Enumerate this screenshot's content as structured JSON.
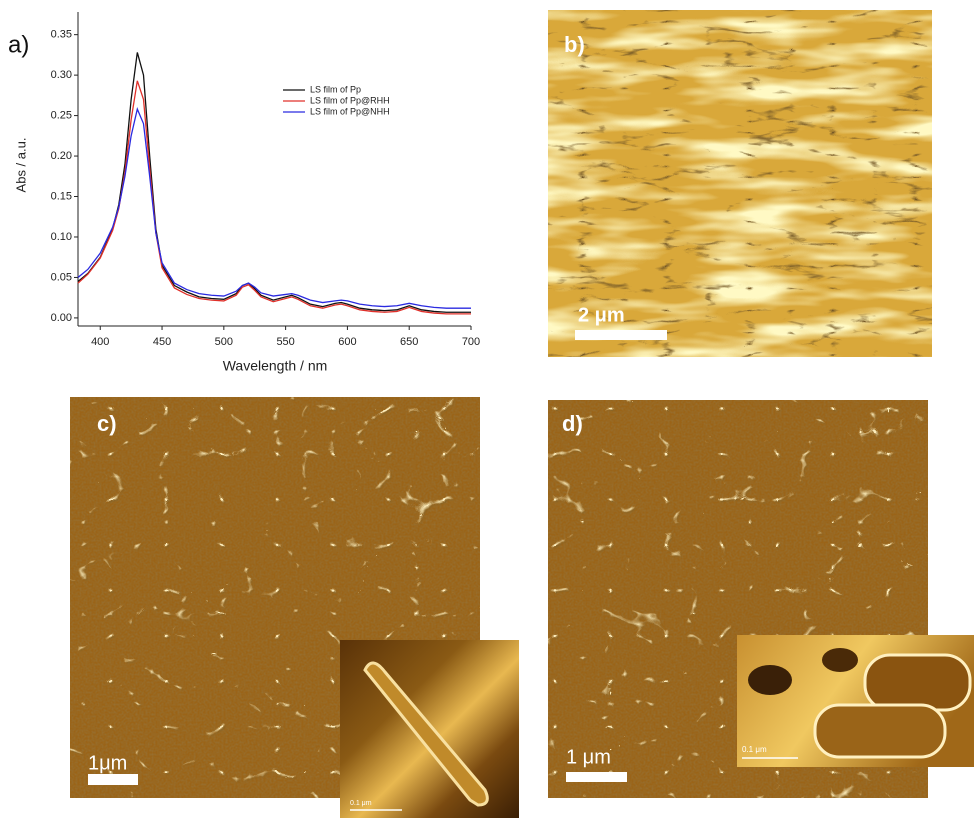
{
  "chart_data": {
    "type": "line",
    "panel_label": "a)",
    "x_label": "Wavelength / nm",
    "y_label": "Abs / a.u.",
    "xlim": [
      382,
      700
    ],
    "ylim": [
      -0.01,
      0.378
    ],
    "xticks": [
      400,
      450,
      500,
      550,
      600,
      650,
      700
    ],
    "yticks": [
      {
        "value": 0,
        "label": "0.00"
      },
      0.05,
      {
        "value": 0.1,
        "label": "0.10"
      },
      0.15,
      {
        "value": 0.2,
        "label": "0.20"
      },
      0.25,
      {
        "value": 0.3,
        "label": "0.30"
      },
      0.35
    ],
    "x": [
      382,
      390,
      400,
      410,
      415,
      420,
      425,
      430,
      435,
      440,
      445,
      450,
      460,
      470,
      480,
      490,
      500,
      510,
      515,
      520,
      525,
      530,
      540,
      550,
      555,
      560,
      570,
      580,
      590,
      595,
      600,
      610,
      620,
      630,
      640,
      650,
      660,
      670,
      680,
      690,
      700
    ],
    "series": [
      {
        "name": "LS film of Pp",
        "color": "#111111",
        "values": [
          0.045,
          0.055,
          0.075,
          0.11,
          0.14,
          0.19,
          0.27,
          0.328,
          0.3,
          0.2,
          0.11,
          0.065,
          0.04,
          0.032,
          0.026,
          0.024,
          0.023,
          0.03,
          0.04,
          0.043,
          0.036,
          0.028,
          0.022,
          0.026,
          0.028,
          0.025,
          0.017,
          0.014,
          0.018,
          0.019,
          0.017,
          0.012,
          0.01,
          0.009,
          0.01,
          0.015,
          0.01,
          0.008,
          0.007,
          0.007,
          0.007
        ]
      },
      {
        "name": "LS film of Pp@RHH",
        "color": "#e0302a",
        "values": [
          0.043,
          0.054,
          0.074,
          0.108,
          0.135,
          0.18,
          0.245,
          0.293,
          0.27,
          0.185,
          0.105,
          0.062,
          0.037,
          0.029,
          0.024,
          0.022,
          0.021,
          0.028,
          0.038,
          0.041,
          0.034,
          0.026,
          0.02,
          0.024,
          0.026,
          0.023,
          0.015,
          0.012,
          0.016,
          0.017,
          0.015,
          0.01,
          0.008,
          0.007,
          0.008,
          0.013,
          0.008,
          0.006,
          0.005,
          0.005,
          0.005
        ]
      },
      {
        "name": "LS film of Pp@NHH",
        "color": "#2a2ae0",
        "values": [
          0.05,
          0.06,
          0.08,
          0.112,
          0.137,
          0.175,
          0.225,
          0.258,
          0.24,
          0.175,
          0.105,
          0.068,
          0.043,
          0.035,
          0.03,
          0.028,
          0.027,
          0.033,
          0.04,
          0.043,
          0.038,
          0.031,
          0.027,
          0.029,
          0.03,
          0.028,
          0.022,
          0.019,
          0.021,
          0.022,
          0.021,
          0.017,
          0.015,
          0.014,
          0.015,
          0.018,
          0.015,
          0.013,
          0.012,
          0.012,
          0.012
        ]
      }
    ],
    "legend": "upper right"
  },
  "images": [
    {
      "label": "b)",
      "scale": "2 μm"
    },
    {
      "label": "c)",
      "scale": "1μm",
      "inset_scale": "0.1 μm"
    },
    {
      "label": "d)",
      "scale": "1 μm",
      "inset_scale": "0.1 μm"
    }
  ]
}
